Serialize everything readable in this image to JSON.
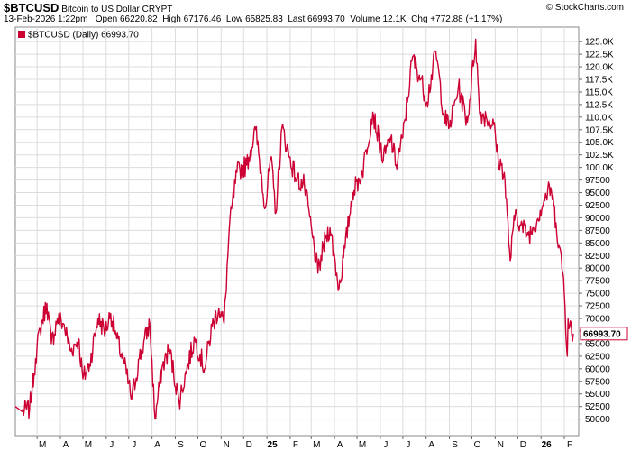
{
  "header": {
    "symbol": "$BTCUSD",
    "description": "Bitcoin to US Dollar",
    "exchange": "CRYPT",
    "timestamp": "13-Feb-2026 1:22pm",
    "open_label": "Open",
    "open_value": "66220.82",
    "high_label": "High",
    "high_value": "67176.46",
    "low_label": "Low",
    "low_value": "65825.83",
    "last_label": "Last",
    "last_value": "66993.70",
    "volume_label": "Volume",
    "volume_value": "12.1K",
    "chg_label": "Chg",
    "chg_value": "+772.88 (+1.17%)",
    "watermark": "© StockCharts.com"
  },
  "legend": {
    "text": "$BTCUSD (Daily) 66993.70",
    "swatch_color": "#cc0033"
  },
  "last_price_tag": "66993.70",
  "colors": {
    "line": "#cc0033",
    "grid": "#dcdcdc",
    "frame": "#8a8a8a"
  },
  "chart_data": {
    "type": "line",
    "title": "$BTCUSD",
    "grid": true,
    "y_axis_side": "right",
    "ylim": [
      47600,
      127000
    ],
    "yticks": [
      {
        "v": 50000,
        "t": "50000"
      },
      {
        "v": 52500,
        "t": "52500"
      },
      {
        "v": 55000,
        "t": "55000"
      },
      {
        "v": 57500,
        "t": "57500"
      },
      {
        "v": 60000,
        "t": "60000"
      },
      {
        "v": 62500,
        "t": "62500"
      },
      {
        "v": 65000,
        "t": "65000"
      },
      {
        "v": 67500,
        "t": "67500"
      },
      {
        "v": 70000,
        "t": "70000"
      },
      {
        "v": 72500,
        "t": "72500"
      },
      {
        "v": 75000,
        "t": "75000"
      },
      {
        "v": 77500,
        "t": "77500"
      },
      {
        "v": 80000,
        "t": "80000"
      },
      {
        "v": 82500,
        "t": "82500"
      },
      {
        "v": 85000,
        "t": "85000"
      },
      {
        "v": 87500,
        "t": "87500"
      },
      {
        "v": 90000,
        "t": "90000"
      },
      {
        "v": 92500,
        "t": "92500"
      },
      {
        "v": 95000,
        "t": "95000"
      },
      {
        "v": 97500,
        "t": "97500"
      },
      {
        "v": 100000,
        "t": "100.0K"
      },
      {
        "v": 102500,
        "t": "102.5K"
      },
      {
        "v": 105000,
        "t": "105.0K"
      },
      {
        "v": 107500,
        "t": "107.5K"
      },
      {
        "v": 110000,
        "t": "110.0K"
      },
      {
        "v": 112500,
        "t": "112.5K"
      },
      {
        "v": 115000,
        "t": "115.0K"
      },
      {
        "v": 117500,
        "t": "117.5K"
      },
      {
        "v": 120000,
        "t": "120.0K"
      },
      {
        "v": 122500,
        "t": "122.5K"
      },
      {
        "v": 125000,
        "t": "125.0K"
      }
    ],
    "xlim": [
      "2024-02-01",
      "2026-02-13"
    ],
    "xticks": [
      {
        "d": "2024-03-01",
        "t": "M",
        "bold": false
      },
      {
        "d": "2024-04-01",
        "t": "A",
        "bold": false
      },
      {
        "d": "2024-05-01",
        "t": "M",
        "bold": false
      },
      {
        "d": "2024-06-01",
        "t": "J",
        "bold": false
      },
      {
        "d": "2024-07-01",
        "t": "J",
        "bold": false
      },
      {
        "d": "2024-08-01",
        "t": "A",
        "bold": false
      },
      {
        "d": "2024-09-01",
        "t": "S",
        "bold": false
      },
      {
        "d": "2024-10-01",
        "t": "O",
        "bold": false
      },
      {
        "d": "2024-11-01",
        "t": "N",
        "bold": false
      },
      {
        "d": "2024-12-01",
        "t": "D",
        "bold": false
      },
      {
        "d": "2025-01-01",
        "t": "25",
        "bold": true
      },
      {
        "d": "2025-02-01",
        "t": "F",
        "bold": false
      },
      {
        "d": "2025-03-01",
        "t": "M",
        "bold": false
      },
      {
        "d": "2025-04-01",
        "t": "A",
        "bold": false
      },
      {
        "d": "2025-05-01",
        "t": "M",
        "bold": false
      },
      {
        "d": "2025-06-01",
        "t": "J",
        "bold": false
      },
      {
        "d": "2025-07-01",
        "t": "J",
        "bold": false
      },
      {
        "d": "2025-08-01",
        "t": "A",
        "bold": false
      },
      {
        "d": "2025-09-01",
        "t": "S",
        "bold": false
      },
      {
        "d": "2025-10-01",
        "t": "O",
        "bold": false
      },
      {
        "d": "2025-11-01",
        "t": "N",
        "bold": false
      },
      {
        "d": "2025-12-01",
        "t": "D",
        "bold": false
      },
      {
        "d": "2026-01-01",
        "t": "26",
        "bold": true
      },
      {
        "d": "2026-02-01",
        "t": "F",
        "bold": false
      }
    ],
    "series": [
      {
        "color": "#cc0033",
        "points": [
          [
            "2024-02-01",
            52500
          ],
          [
            "2024-02-10",
            51500
          ],
          [
            "2024-02-20",
            52000
          ],
          [
            "2024-02-28",
            62000
          ],
          [
            "2024-03-05",
            68000
          ],
          [
            "2024-03-14",
            73000
          ],
          [
            "2024-03-20",
            65000
          ],
          [
            "2024-03-28",
            70000
          ],
          [
            "2024-04-05",
            69000
          ],
          [
            "2024-04-15",
            63500
          ],
          [
            "2024-04-25",
            66000
          ],
          [
            "2024-05-01",
            58000
          ],
          [
            "2024-05-10",
            61000
          ],
          [
            "2024-05-21",
            70000
          ],
          [
            "2024-05-31",
            67500
          ],
          [
            "2024-06-07",
            71000
          ],
          [
            "2024-06-15",
            66000
          ],
          [
            "2024-06-25",
            61000
          ],
          [
            "2024-07-05",
            54000
          ],
          [
            "2024-07-15",
            62000
          ],
          [
            "2024-07-29",
            69000
          ],
          [
            "2024-08-05",
            50000
          ],
          [
            "2024-08-14",
            60000
          ],
          [
            "2024-08-24",
            64000
          ],
          [
            "2024-09-06",
            53500
          ],
          [
            "2024-09-18",
            61000
          ],
          [
            "2024-09-27",
            66000
          ],
          [
            "2024-10-10",
            60000
          ],
          [
            "2024-10-20",
            68500
          ],
          [
            "2024-10-29",
            72000
          ],
          [
            "2024-11-05",
            69000
          ],
          [
            "2024-11-12",
            88000
          ],
          [
            "2024-11-22",
            99000
          ],
          [
            "2024-12-05",
            100500
          ],
          [
            "2024-12-17",
            107500
          ],
          [
            "2024-12-30",
            92000
          ],
          [
            "2025-01-06",
            102000
          ],
          [
            "2025-01-13",
            91000
          ],
          [
            "2025-01-21",
            108000
          ],
          [
            "2025-01-31",
            102000
          ],
          [
            "2025-02-10",
            97500
          ],
          [
            "2025-02-20",
            96500
          ],
          [
            "2025-03-03",
            86000
          ],
          [
            "2025-03-10",
            79000
          ],
          [
            "2025-03-20",
            86000
          ],
          [
            "2025-03-26",
            88000
          ],
          [
            "2025-04-07",
            76000
          ],
          [
            "2025-04-15",
            84000
          ],
          [
            "2025-04-25",
            95000
          ],
          [
            "2025-05-08",
            99000
          ],
          [
            "2025-05-22",
            111000
          ],
          [
            "2025-06-05",
            101500
          ],
          [
            "2025-06-15",
            106000
          ],
          [
            "2025-06-22",
            100500
          ],
          [
            "2025-07-01",
            106000
          ],
          [
            "2025-07-14",
            122000
          ],
          [
            "2025-07-25",
            117500
          ],
          [
            "2025-08-02",
            113000
          ],
          [
            "2025-08-14",
            123000
          ],
          [
            "2025-08-25",
            110000
          ],
          [
            "2025-09-01",
            108000
          ],
          [
            "2025-09-13",
            116000
          ],
          [
            "2025-09-25",
            109000
          ],
          [
            "2025-10-06",
            125500
          ],
          [
            "2025-10-11",
            111000
          ],
          [
            "2025-10-20",
            110000
          ],
          [
            "2025-10-30",
            108500
          ],
          [
            "2025-11-05",
            101500
          ],
          [
            "2025-11-13",
            99000
          ],
          [
            "2025-11-21",
            81500
          ],
          [
            "2025-11-28",
            91500
          ],
          [
            "2025-12-05",
            88500
          ],
          [
            "2025-12-15",
            86500
          ],
          [
            "2025-12-22",
            88000
          ],
          [
            "2026-01-05",
            93500
          ],
          [
            "2026-01-14",
            96000
          ],
          [
            "2026-01-21",
            89000
          ],
          [
            "2026-01-31",
            78000
          ],
          [
            "2026-02-05",
            62500
          ],
          [
            "2026-02-06",
            70000
          ],
          [
            "2026-02-09",
            69500
          ],
          [
            "2026-02-12",
            65500
          ],
          [
            "2026-02-13",
            66993.7
          ]
        ]
      }
    ]
  }
}
